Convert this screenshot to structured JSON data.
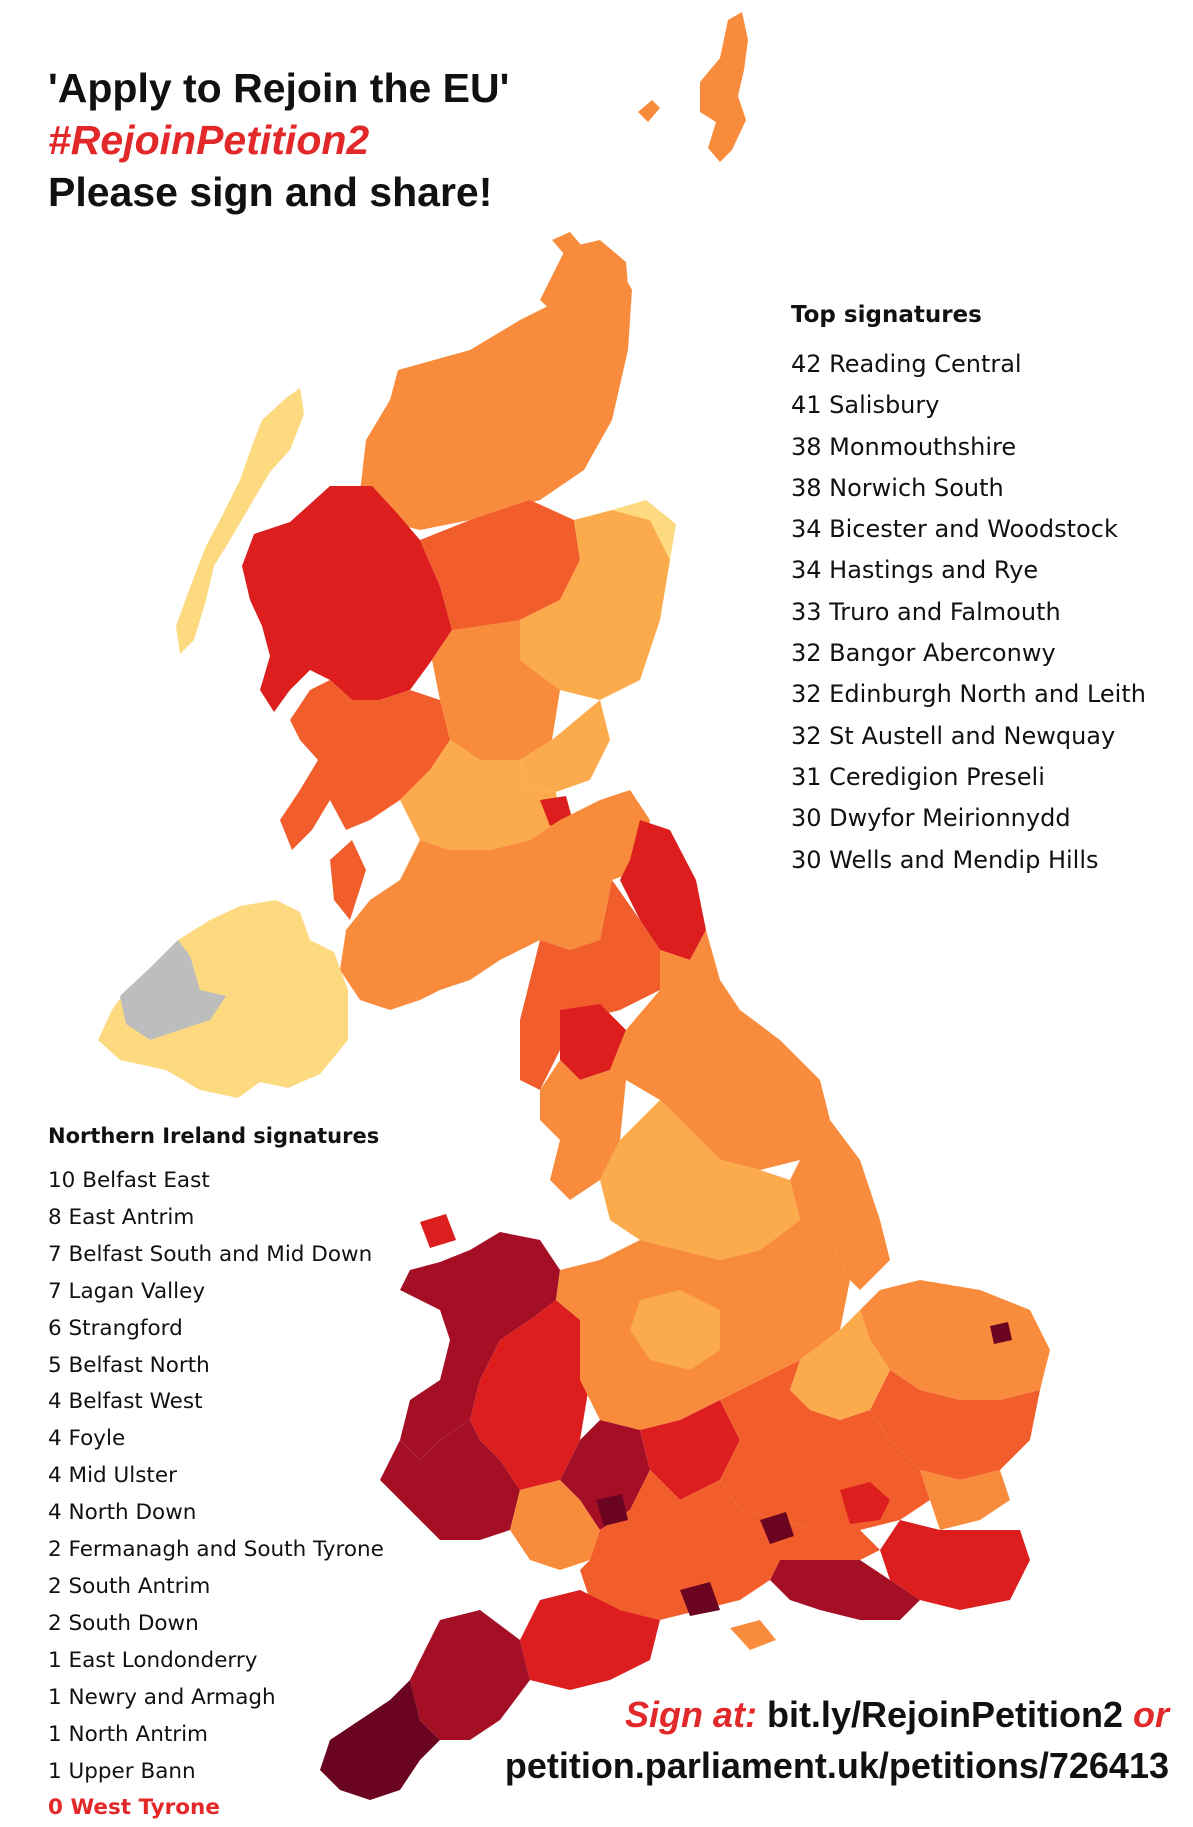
{
  "title": {
    "line1": "'Apply to Rejoin the EU'",
    "hashtag": "#RejoinPetition2",
    "line3": "Please sign and share!"
  },
  "top_signatures": {
    "heading": "Top signatures",
    "items": [
      "42 Reading Central",
      "41 Salisbury",
      "38 Monmouthshire",
      "38 Norwich South",
      "34 Bicester and Woodstock",
      "34 Hastings and Rye",
      "33 Truro and Falmouth",
      "32 Bangor Aberconwy",
      "32 Edinburgh North and Leith",
      "32 St Austell and Newquay",
      "31 Ceredigion Preseli",
      "30 Dwyfor Meirionnydd",
      "30 Wells and Mendip Hills"
    ]
  },
  "ni_signatures": {
    "heading": "Northern Ireland signatures",
    "items": [
      "10 Belfast East",
      "8 East Antrim",
      "7 Belfast South and Mid Down",
      "7 Lagan Valley",
      "6 Strangford",
      "5 Belfast North",
      "4 Belfast West",
      "4 Foyle",
      "4 Mid Ulster",
      "4 North Down",
      "2 Fermanagh and South Tyrone",
      "2 South Antrim",
      "2 South Down",
      "1 East Londonderry",
      "1 Newry and Armagh",
      "1 North Antrim",
      "1 Upper Bann",
      "0 West Tyrone"
    ]
  },
  "cta": {
    "sign_at": "Sign at:",
    "short_url": "bit.ly/RejoinPetition2",
    "or": "or",
    "full_url": "petition.parliament.uk/petitions/726413"
  },
  "colors": {
    "level_pale": "#fdd980",
    "level_light": "#fbab4b",
    "level_mid": "#f88c3c",
    "level_orange_red": "#f25d2c",
    "level_red": "#dc1e1e",
    "level_dark_red": "#a50f26",
    "level_darkest": "#6b0420",
    "no_data": "#bdbdbd",
    "accent_red": "#e3282a"
  }
}
